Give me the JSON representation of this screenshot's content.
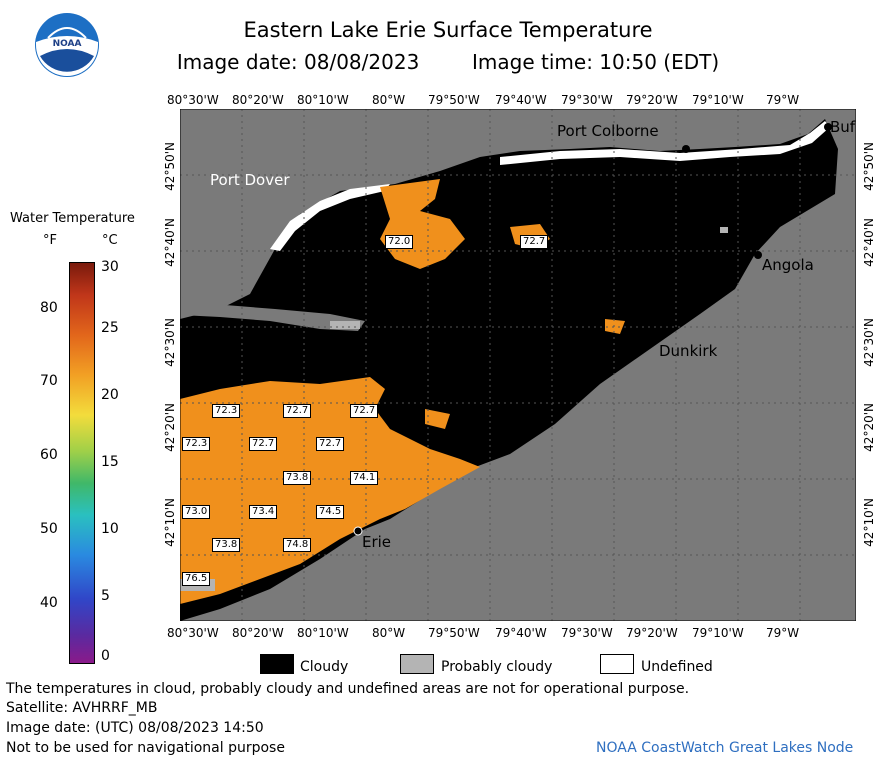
{
  "title": "Eastern Lake Erie Surface Temperature",
  "image_date": "Image date: 08/08/2023",
  "image_time": "Image time: 10:50 (EDT)",
  "lon_labels": [
    "80°30'W",
    "80°20'W",
    "80°10'W",
    "80°W",
    "79°50'W",
    "79°40'W",
    "79°30'W",
    "79°20'W",
    "79°10'W",
    "79°W"
  ],
  "lat_labels": [
    "42°50'N",
    "42°40'N",
    "42°30'N",
    "42°20'N",
    "42°10'N"
  ],
  "places": {
    "port_colborne": "Port Colborne",
    "port_dover": "Port Dover",
    "angola": "Angola",
    "dunkirk": "Dunkirk",
    "erie": "Erie",
    "buffalo": "Buf"
  },
  "temps": {
    "t1": "72.0",
    "t2": "72.7",
    "t3": "72.3",
    "t4": "72.7",
    "t5": "72.7",
    "t6": "72.3",
    "t7": "72.7",
    "t8": "72.7",
    "t9": "73.8",
    "t10": "74.1",
    "t11": "73.0",
    "t12": "73.4",
    "t13": "74.5",
    "t14": "73.8",
    "t15": "74.8",
    "t16": "76.5"
  },
  "legend": {
    "title": "Water Temperature",
    "unit_f": "°F",
    "unit_c": "°C",
    "f_ticks": [
      "80",
      "70",
      "60",
      "50",
      "40"
    ],
    "c_ticks": [
      "30",
      "25",
      "20",
      "15",
      "10",
      "5",
      "0"
    ]
  },
  "key": {
    "cloudy": "Cloudy",
    "probably_cloudy": "Probably cloudy",
    "undefined": "Undefined"
  },
  "footer": {
    "disclaimer": "The temperatures in cloud, probably cloudy and undefined areas are not for operational purpose.",
    "satellite": "Satellite: AVHRRF_MB",
    "utc_date": "Image date: (UTC) 08/08/2023  14:50",
    "nav": "Not to be used for navigational purpose",
    "credit": "NOAA CoastWatch Great Lakes Node"
  },
  "logo": {
    "text": "NOAA"
  },
  "colors": {
    "land": "#7a7a7a",
    "cloud": "#000000",
    "water_warm": "#f0901c",
    "probably_cloudy": "#b4b4b4",
    "undefined": "#ffffff",
    "credit": "#2f6fc0"
  }
}
